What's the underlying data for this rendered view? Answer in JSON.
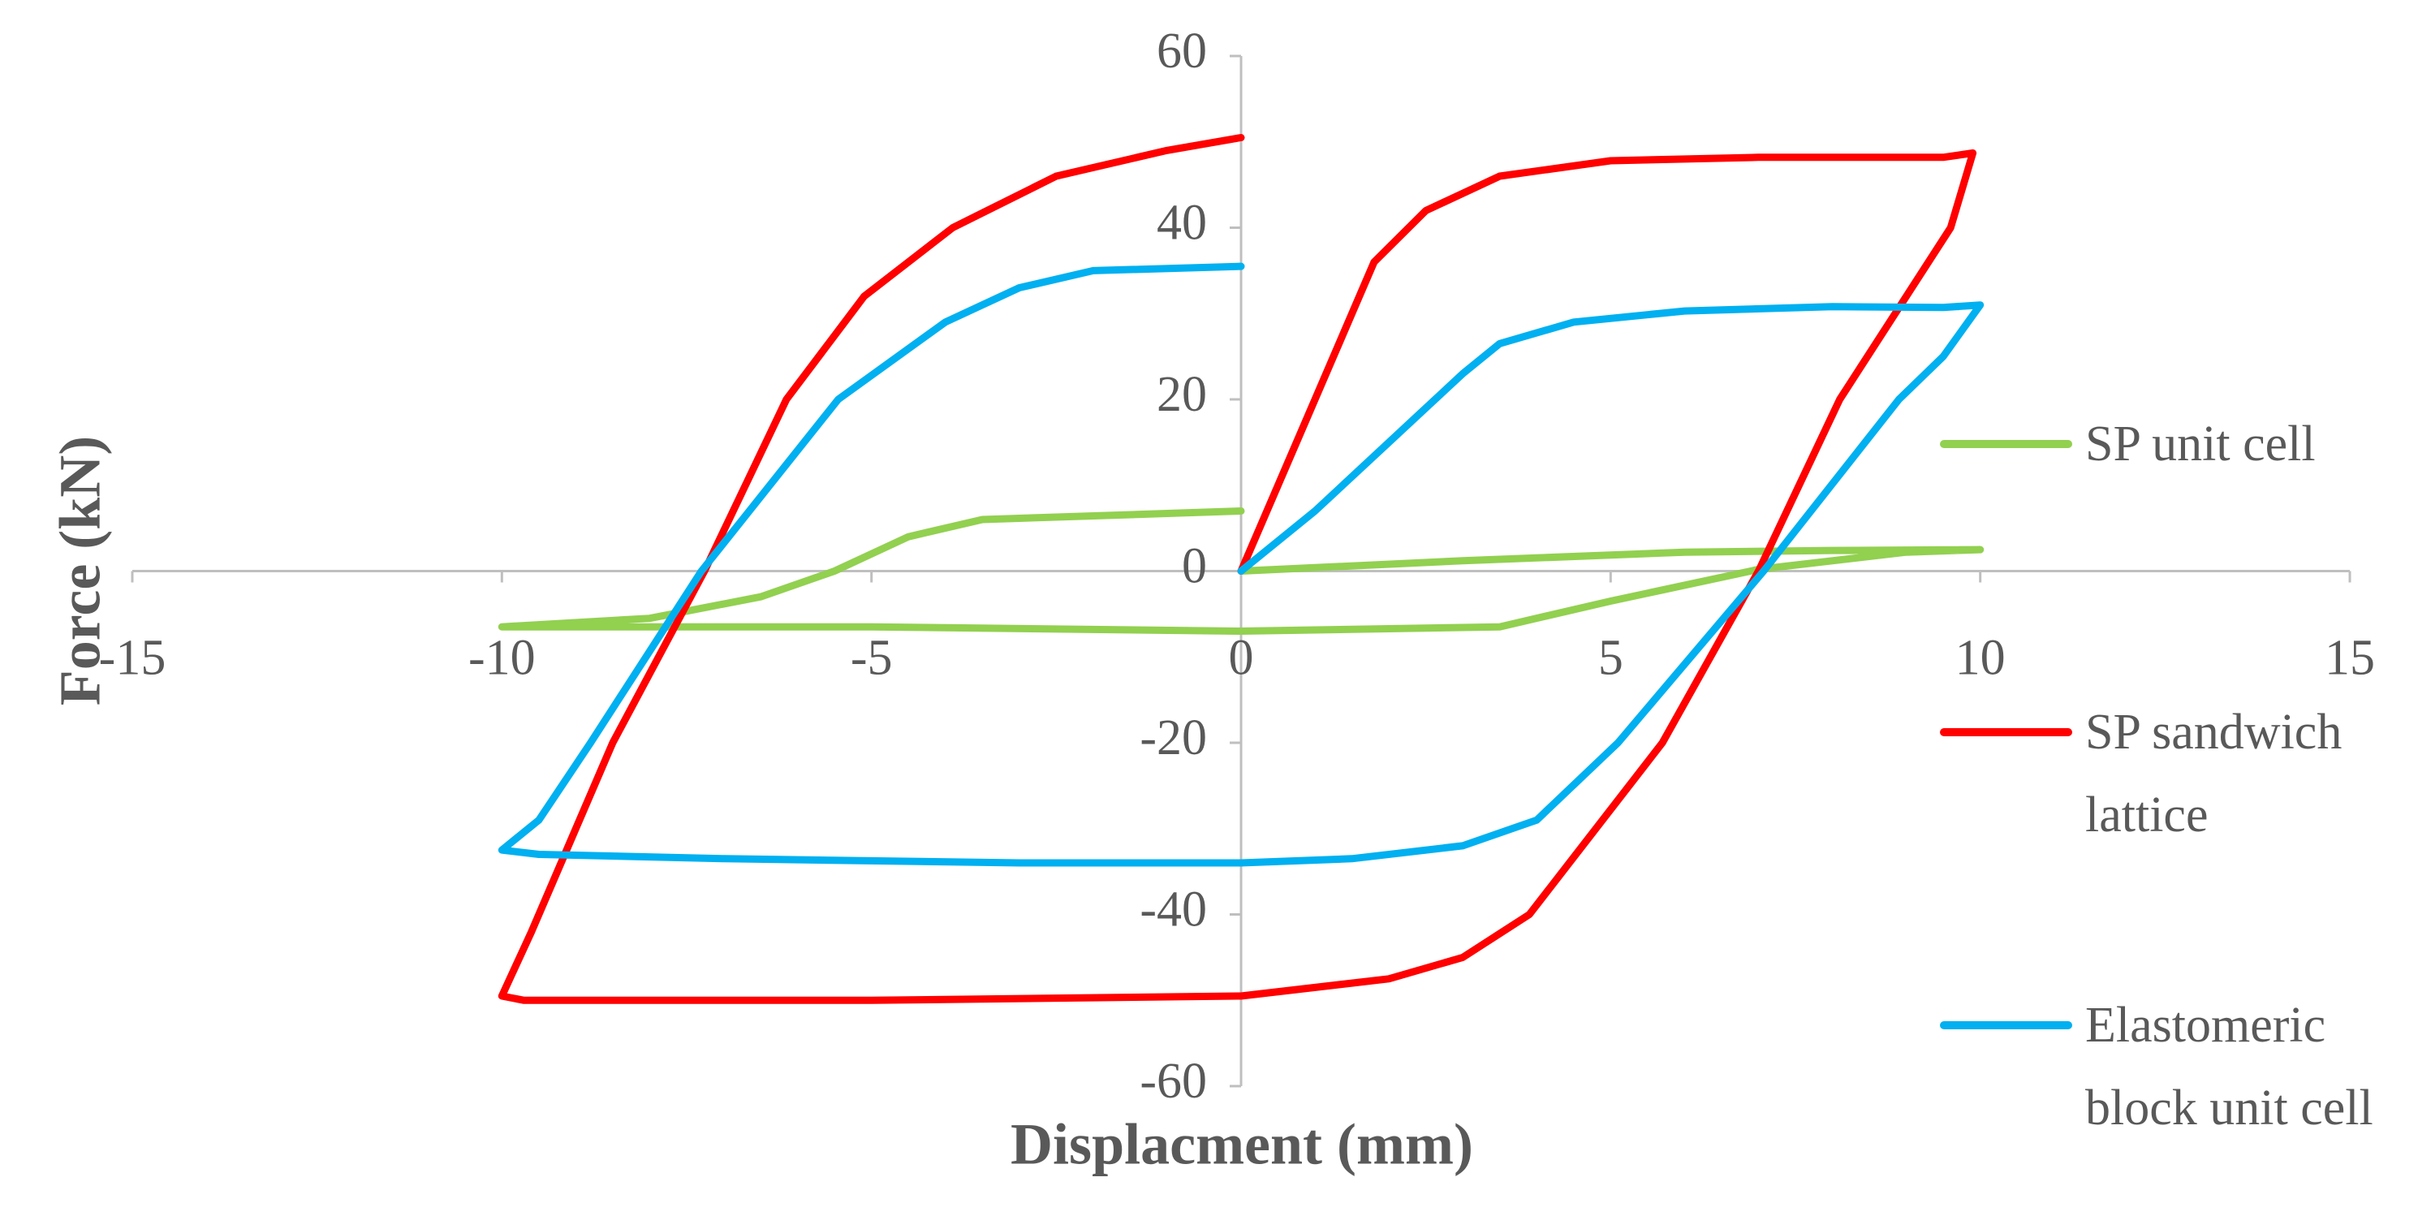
{
  "chart_data": {
    "type": "line",
    "x_label": "Displacment (mm)",
    "y_label": "Force (kN)",
    "xlim": [
      -15,
      15
    ],
    "xticks": [
      -15,
      -10,
      -5,
      0,
      5,
      10,
      15
    ],
    "ylim": [
      -60,
      60
    ],
    "yticks": [
      -60,
      -40,
      -20,
      0,
      20,
      40,
      60
    ],
    "grid": false,
    "legend": "right",
    "series": [
      {
        "name": "SP unit cell",
        "color": "#92d050",
        "x": [
          0,
          3,
          6,
          8,
          10,
          9,
          7,
          5,
          3.5,
          0,
          -5,
          -10,
          -8,
          -6.5,
          -5.5,
          -4.5,
          -3.5,
          0
        ],
        "values": [
          0,
          1.2,
          2.2,
          2.4,
          2.5,
          2.2,
          0.2,
          -3.5,
          -6.5,
          -7,
          -6.5,
          -6.5,
          -5.5,
          -3,
          0,
          4,
          6,
          7
        ]
      },
      {
        "name": "SP sandwich lattice",
        "color": "#ff0000",
        "x": [
          0,
          1,
          1.8,
          2.5,
          3.5,
          5,
          7,
          9.5,
          9.9,
          9.6,
          8.1,
          7,
          5.7,
          3.9,
          3,
          2,
          0,
          -5,
          -9.7,
          -10,
          -9.6,
          -8.5,
          -7.26,
          -6.15,
          -5.1,
          -3.9,
          -2.5,
          -1,
          0
        ],
        "values": [
          0,
          20,
          36,
          42,
          46,
          47.8,
          48.2,
          48.2,
          48.7,
          40,
          20,
          0,
          -20,
          -40,
          -45,
          -47.5,
          -49.5,
          -50,
          -50,
          -49.5,
          -42,
          -20,
          0,
          20,
          32,
          40,
          46,
          49,
          50.5
        ]
      },
      {
        "name": "Elastomeric block unit cell",
        "color": "#00b0f0",
        "x": [
          0,
          1,
          2,
          3,
          3.5,
          4.5,
          6,
          8,
          9.5,
          10,
          9.5,
          8.9,
          7.07,
          5.1,
          4,
          3,
          1.5,
          0,
          -3,
          -7,
          -9.5,
          -10,
          -9.5,
          -8.8,
          -7.3,
          -5.45,
          -4,
          -3,
          -2,
          0
        ],
        "values": [
          0,
          7,
          15,
          23,
          26.5,
          29,
          30.3,
          30.8,
          30.7,
          31,
          25,
          20,
          0,
          -20,
          -29,
          -32,
          -33.5,
          -34,
          -34,
          -33.5,
          -33,
          -32.5,
          -29,
          -20,
          0,
          20,
          29,
          33,
          35,
          35.5
        ]
      }
    ]
  }
}
